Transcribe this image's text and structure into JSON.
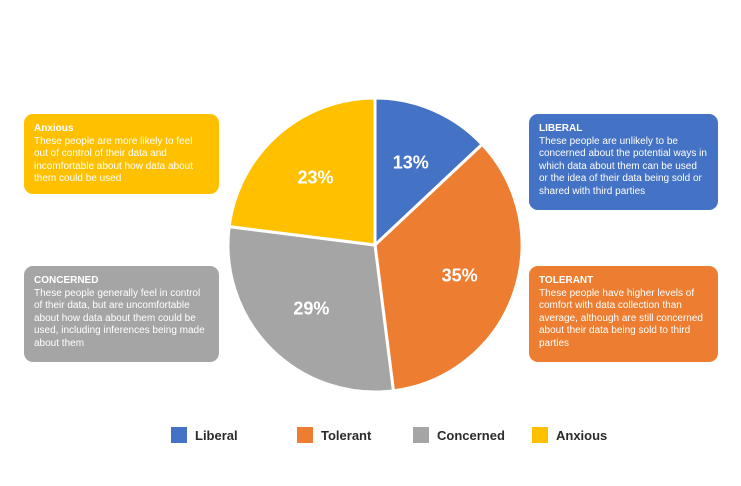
{
  "chart_data": {
    "type": "pie",
    "categories": [
      "Liberal",
      "Tolerant",
      "Concerned",
      "Anxious"
    ],
    "values": [
      13,
      35,
      29,
      23
    ],
    "labels": [
      "13%",
      "35%",
      "29%",
      "23%"
    ],
    "colors": [
      "#4472c4",
      "#ed7d31",
      "#a5a5a5",
      "#ffc000"
    ],
    "start_angle_deg": 0,
    "direction": "clockwise",
    "legend_position": "bottom"
  },
  "cards": {
    "anxious": {
      "title": "Anxious",
      "body": "These people are more likely to feel out of control of their data and incomfortable about how data about them could be used"
    },
    "liberal": {
      "title": "LIBERAL",
      "body": "These people are unlikely to be concerned about the potential ways in which data about them can be used or the idea of their data being sold or shared with third parties"
    },
    "concerned": {
      "title": "CONCERNED",
      "body": "These people generally feel in control of their data, but are uncomfortable about how data about them could be used, including inferences being made about them"
    },
    "tolerant": {
      "title": "TOLERANT",
      "body": "These people have higher levels of comfort with data collection than average, although are still concerned about their data being sold to third parties"
    }
  },
  "legend": {
    "liberal": "Liberal",
    "tolerant": "Tolerant",
    "concerned": "Concerned",
    "anxious": "Anxious"
  }
}
